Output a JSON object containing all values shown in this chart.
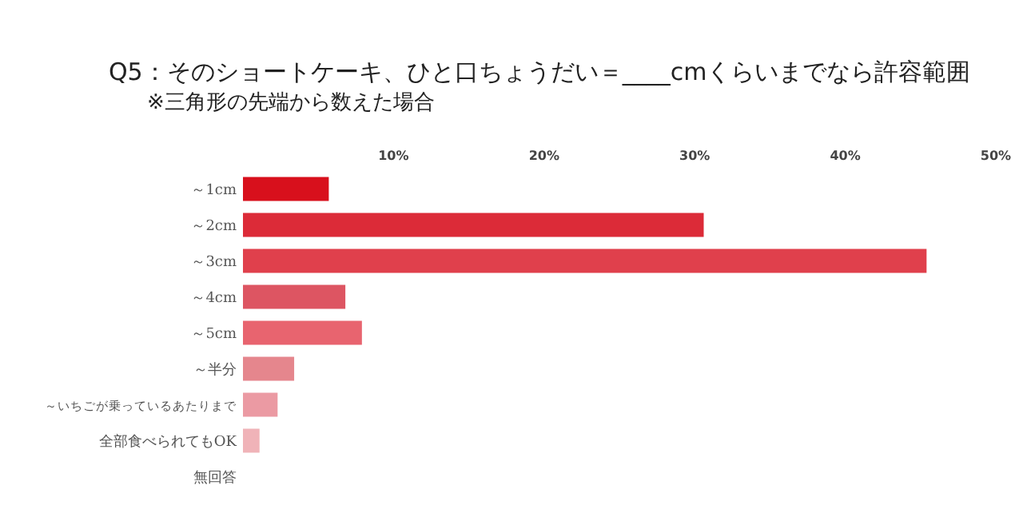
{
  "chart_data": {
    "type": "bar",
    "orientation": "horizontal",
    "title": "Q5：そのショートケーキ、ひと口ちょうだい＝____cmくらいまでなら許容範囲",
    "subtitle": "※三角形の先端から数えた場合",
    "categories": [
      "～1cm",
      "～2cm",
      "～3cm",
      "～4cm",
      "～5cm",
      "～半分",
      "～いちごが乗っているあたりまで",
      "全部食べられてもOK",
      "無回答"
    ],
    "values": [
      5.7,
      30.6,
      45.4,
      6.8,
      7.9,
      3.4,
      2.3,
      1.1,
      0
    ],
    "colors": [
      "#d8101c",
      "#dc2b38",
      "#e0404c",
      "#dd5562",
      "#e8646f",
      "#e5868d",
      "#eb9aa3",
      "#f0b3b8",
      "#f0b3b8"
    ],
    "xlim": [
      0,
      50
    ],
    "xticks": [
      {
        "value": 10,
        "label": "10%"
      },
      {
        "value": 20,
        "label": "20%"
      },
      {
        "value": 30,
        "label": "30%"
      },
      {
        "value": 40,
        "label": "40%"
      },
      {
        "value": 50,
        "label": "50%"
      }
    ]
  }
}
